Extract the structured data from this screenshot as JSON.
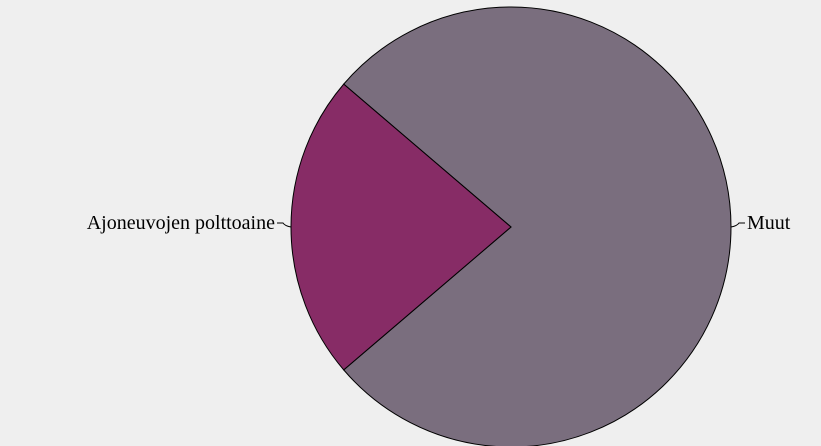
{
  "chart_data": {
    "type": "pie",
    "slices": [
      {
        "label": "Muut",
        "value": 77.5,
        "color": "#7a6e7e"
      },
      {
        "label": "Ajoneuvojen polttoaine",
        "value": 22.5,
        "color": "#872c66"
      }
    ],
    "legend": "none",
    "background": "#efefef"
  }
}
